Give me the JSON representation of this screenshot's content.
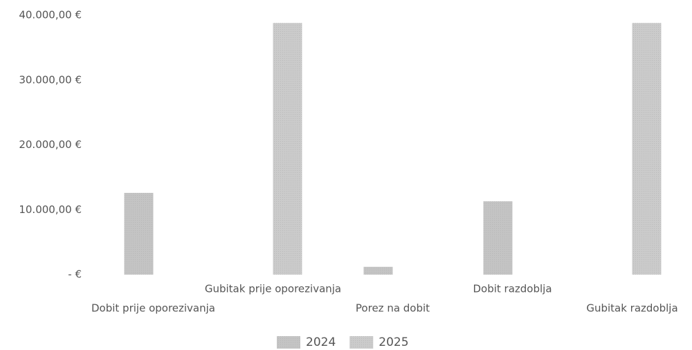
{
  "chart_data": {
    "type": "bar",
    "categories": [
      "Dobit prije oporezivanja",
      "Gubitak prije oporezivanja",
      "Porez na dobit",
      "Dobit razdoblja",
      "Gubitak razdoblja"
    ],
    "series": [
      {
        "name": "2024",
        "color": "#c4c4c4",
        "values": [
          12600,
          null,
          1200,
          11300,
          null
        ]
      },
      {
        "name": "2025",
        "color": "#cbcbcb",
        "values": [
          null,
          38800,
          null,
          null,
          38800
        ]
      }
    ],
    "ylim": [
      0,
      40000
    ],
    "yticks": [
      {
        "value": 0,
        "label": "-   €"
      },
      {
        "value": 10000,
        "label": "10.000,00 €"
      },
      {
        "value": 20000,
        "label": "20.000,00 €"
      },
      {
        "value": 30000,
        "label": "30.000,00 €"
      },
      {
        "value": 40000,
        "label": "40.000,00 €"
      }
    ],
    "grid": false,
    "legend": "bottom"
  }
}
